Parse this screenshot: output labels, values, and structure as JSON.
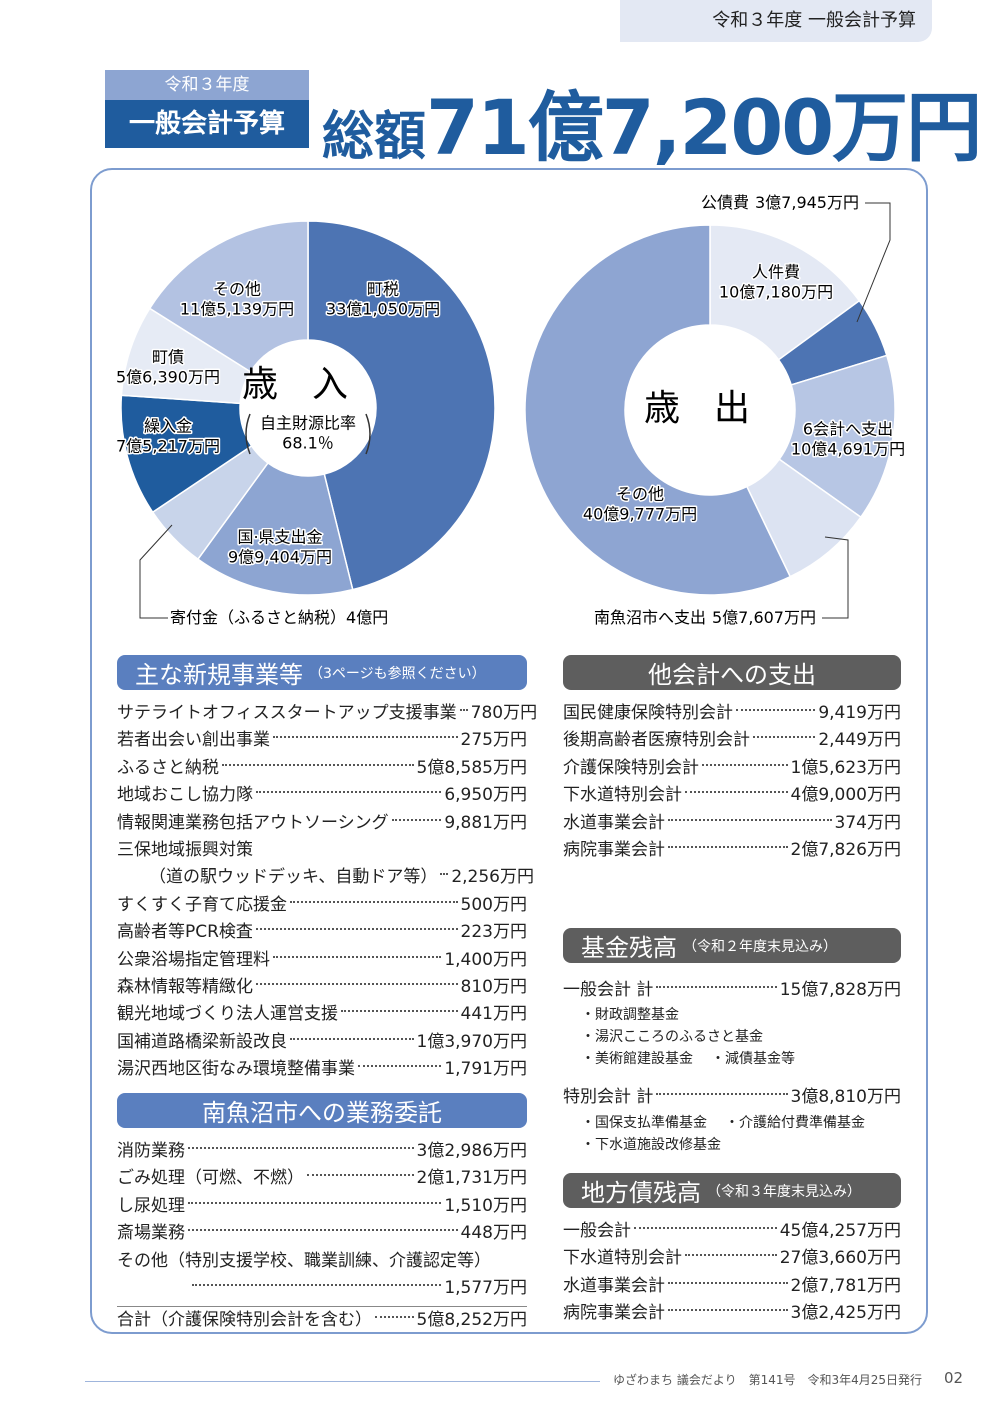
{
  "header": {
    "tag": "令和３年度 一般会計予算"
  },
  "title": {
    "year": "令和３年度",
    "name": "一般会計予算",
    "total_label": "総額",
    "total": "71億7,200万円"
  },
  "chart_data": [
    {
      "type": "pie",
      "title": "歳入",
      "note": "自主財源比率",
      "note_value": "68.1％",
      "categories": [
        "町税",
        "国·県支出金",
        "寄付金（ふるさと納税）",
        "繰入金",
        "町債",
        "その他"
      ],
      "values": [
        331050,
        99404,
        40000,
        75217,
        56390,
        115139
      ],
      "value_labels": [
        "33億1,050万円",
        "9億9,404万円",
        "4億円",
        "7億5,217万円",
        "5億6,390万円",
        "11億5,139万円"
      ],
      "colors": [
        "#4d74b3",
        "#8da5d2",
        "#c8d4ea",
        "#1f5c9e",
        "#e6ebf5",
        "#b3c2e2"
      ]
    },
    {
      "type": "pie",
      "title": "歳出",
      "categories": [
        "人件費",
        "公債費",
        "6会計へ支出",
        "南魚沼市へ支出",
        "その他"
      ],
      "values": [
        107180,
        37945,
        104691,
        57607,
        409777
      ],
      "value_labels": [
        "10億7,180万円",
        "3億7,945万円",
        "10億4,691万円",
        "5億7,607万円",
        "40億9,777万円"
      ],
      "colors": [
        "#e4e9f4",
        "#4d74b3",
        "#b7c6e4",
        "#dce3f2",
        "#8ea5d2"
      ]
    }
  ],
  "sections": [
    {
      "title": "主な新規事業等",
      "subtitle": "（3ページも参照ください）",
      "color": "#5a7fbf",
      "rows": [
        {
          "name": "サテライトオフィススタートアップ支援事業",
          "amount": "780万円"
        },
        {
          "name": "若者出会い創出事業",
          "amount": "275万円"
        },
        {
          "name": "ふるさと納税",
          "amount": "5億8,585万円"
        },
        {
          "name": "地域おこし協力隊",
          "amount": "6,950万円"
        },
        {
          "name": "情報関連業務包括アウトソーシング",
          "amount": "9,881万円"
        },
        {
          "name": "三保地域振興対策"
        },
        {
          "name": "（道の駅ウッドデッキ、自動ドア等）",
          "amount": "2,256万円"
        },
        {
          "name": "すくすく子育て応援金",
          "amount": "500万円"
        },
        {
          "name": "高齢者等PCR検査",
          "amount": "223万円"
        },
        {
          "name": "公衆浴場指定管理料",
          "amount": "1,400万円"
        },
        {
          "name": "森林情報等精緻化",
          "amount": "810万円"
        },
        {
          "name": "観光地域づくり法人運営支援",
          "amount": "441万円"
        },
        {
          "name": "国補道路橋梁新設改良",
          "amount": "1億3,970万円"
        },
        {
          "name": "湯沢西地区街なみ環境整備事業",
          "amount": "1,791万円"
        }
      ]
    },
    {
      "title": "南魚沼市への業務委託",
      "color": "#5a7fbf",
      "rows": [
        {
          "name": "消防業務",
          "amount": "3億2,986万円"
        },
        {
          "name": "ごみ処理（可燃、不燃）",
          "amount": "2億1,731万円"
        },
        {
          "name": "し尿処理",
          "amount": "1,510万円"
        },
        {
          "name": "斎場業務",
          "amount": "448万円"
        },
        {
          "name": "その他（特別支援学校、職業訓練、介護認定等）"
        },
        {
          "amount": "1,577万円"
        }
      ],
      "total": {
        "name": "合計（介護保険特別会計を含む）",
        "amount": "5億8,252万円"
      }
    },
    {
      "title": "他会計への支出",
      "color": "#5e5e5e",
      "rows": [
        {
          "name": "国民健康保険特別会計",
          "amount": "9,419万円"
        },
        {
          "name": "後期高齢者医療特別会計",
          "amount": "2,449万円"
        },
        {
          "name": "介護保険特別会計",
          "amount": "1億5,623万円"
        },
        {
          "name": "下水道特別会計",
          "amount": "4億9,000万円"
        },
        {
          "name": "水道事業会計",
          "amount": "374万円"
        },
        {
          "name": "病院事業会計",
          "amount": "2億7,826万円"
        }
      ]
    },
    {
      "title": "基金残高",
      "subtitle": "（令和２年度末見込み）",
      "color": "#5e5e5e",
      "rows": [
        {
          "name": "一般会計 計",
          "amount": "15億7,828万円",
          "bullets": [
            [
              "財政調整基金"
            ],
            [
              "湯沢こころのふるさと基金"
            ],
            [
              "美術館建設基金",
              "減債基金等"
            ]
          ]
        },
        {
          "name": "特別会計 計",
          "amount": "3億8,810万円",
          "bullets": [
            [
              "国保支払準備基金",
              "介護給付費準備基金"
            ],
            [
              "下水道施設改修基金"
            ]
          ]
        }
      ]
    },
    {
      "title": "地方債残高",
      "subtitle": "（令和３年度末見込み）",
      "color": "#5e5e5e",
      "rows": [
        {
          "name": "一般会計",
          "amount": "45億4,257万円"
        },
        {
          "name": "下水道特別会計",
          "amount": "27億3,660万円"
        },
        {
          "name": "水道事業会計",
          "amount": "2億7,781万円"
        },
        {
          "name": "病院事業会計",
          "amount": "3億2,425万円"
        }
      ]
    }
  ],
  "footer": {
    "issue": "ゆざわまち 議会だより　第141号　令和3年4月25日発行",
    "page": "02"
  }
}
